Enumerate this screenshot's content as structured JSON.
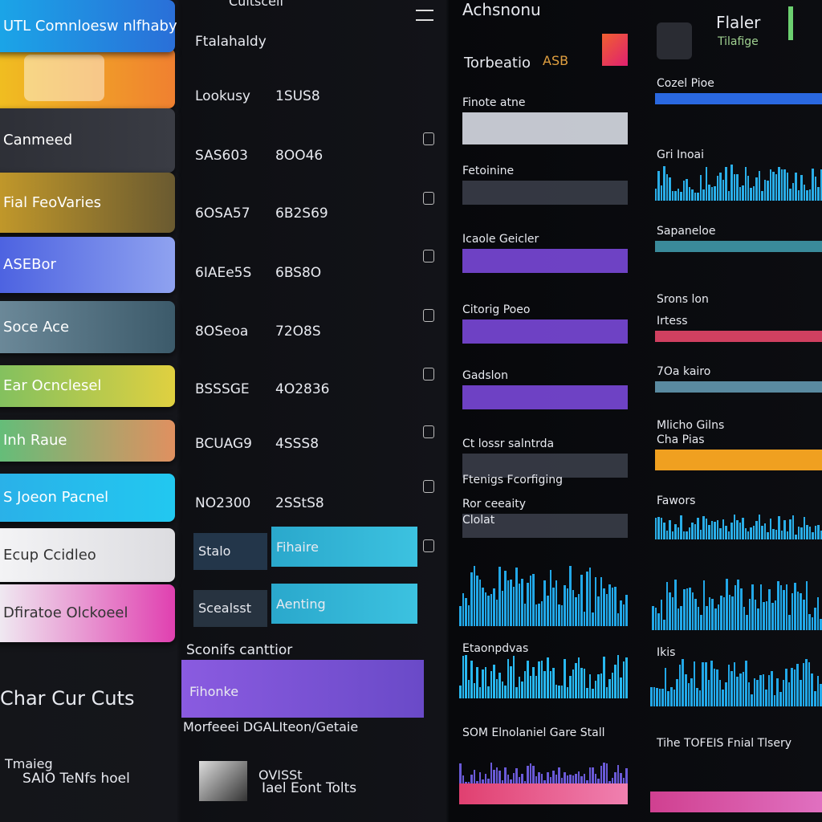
{
  "sidebar": {
    "items": [
      "UTL Comnloesw nlfhaby",
      "Canmeed",
      "Fial FeoVaries",
      "ASEBor",
      "Soce Ace",
      "Ear Ocnclesel",
      "Inh Raue",
      "S Joeon Pacnel",
      "Ecup Ccidleo",
      "Dfiratoe Olckoeel"
    ],
    "footer_title": "Char Cur Cuts",
    "footer_items": [
      "Tmaieg",
      "SAIO TeNfs hoel"
    ]
  },
  "middle": {
    "top": "Cuitscell",
    "title": "Ftalahaldy",
    "rows": [
      [
        "Lookusy",
        "1SUS8"
      ],
      [
        "SAS603",
        "8OO46"
      ],
      [
        "6OSA57",
        "6B2S69"
      ],
      [
        "6IAEe5S",
        "6BS8O"
      ],
      [
        "8OSeoa",
        "72O8S"
      ],
      [
        "BSSSGE",
        "4O2836"
      ],
      [
        "BCUAG9",
        "4SSS8"
      ],
      [
        "NO2300",
        "2SStS8"
      ]
    ],
    "buttons": [
      [
        "Stalo",
        "Fihaire"
      ],
      [
        "Scealsst",
        "Aenting"
      ]
    ],
    "section": "Sconifs canttior",
    "highlight": "Fihonke",
    "subsection": "Morfeeei DGALIteon/Getaie",
    "card_lines": [
      "OVISSt",
      "Iael Eont Tolts"
    ]
  },
  "right": {
    "title": "Achsnonu",
    "subtitle": "Torbeatio",
    "badge": "ASB",
    "brand": "Flaler",
    "brand_sub": "Tilafige",
    "left_cards": [
      "Finote atne",
      "Fetoinine",
      "Icaole Geicler",
      "Citorig Poeo",
      "Gadslon",
      "Ct lossr salntrda",
      "Ftenigs Fcorfiging",
      "Ror ceeaity",
      "Clolat",
      "Etaonpdvas",
      "SOM Elnolaniel Gare Stall"
    ],
    "right_cards": [
      "Cozel Pioe",
      "Gri Inoai",
      "Sapaneloe",
      "Srons lon",
      "Irtess",
      "7Oa kairo",
      "Mlicho Gilns",
      "Cha Pias",
      "Fawors",
      "Ikis",
      "Tihe TOFEIS Fnial Tlsery"
    ]
  }
}
